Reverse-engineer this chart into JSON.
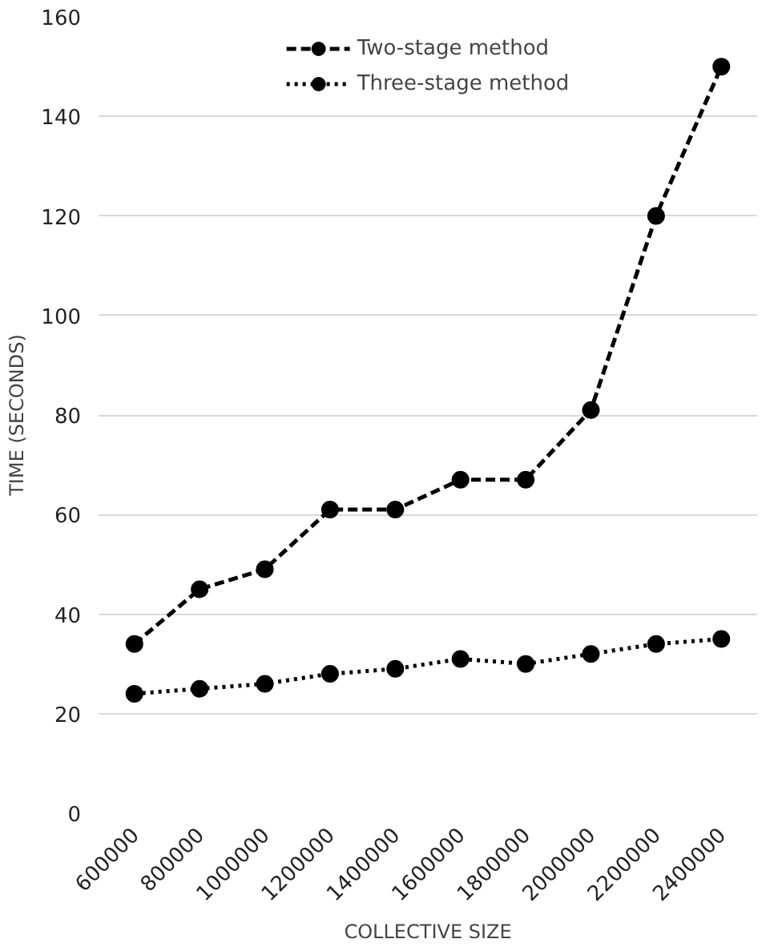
{
  "chart_data": {
    "type": "line",
    "xlabel": "COLLECTIVE SIZE",
    "ylabel": "TIME (SECONDS)",
    "categories": [
      "600000",
      "800000",
      "1000000",
      "1200000",
      "1400000",
      "1600000",
      "1800000",
      "2000000",
      "2200000",
      "2400000"
    ],
    "series": [
      {
        "name": "Two-stage method",
        "color": "#000000",
        "line_style": "dashed",
        "values": [
          34,
          45,
          49,
          61,
          61,
          67,
          67,
          81,
          120,
          150
        ]
      },
      {
        "name": "Three-stage method",
        "color": "#000000",
        "line_style": "dotted",
        "values": [
          24,
          25,
          26,
          28,
          29,
          31,
          30,
          32,
          34,
          35
        ]
      }
    ],
    "ylim": [
      0,
      160
    ],
    "yticks": [
      0,
      20,
      40,
      60,
      80,
      100,
      120,
      140,
      160
    ],
    "grid": "y",
    "legend": "top",
    "marker": "circle"
  }
}
